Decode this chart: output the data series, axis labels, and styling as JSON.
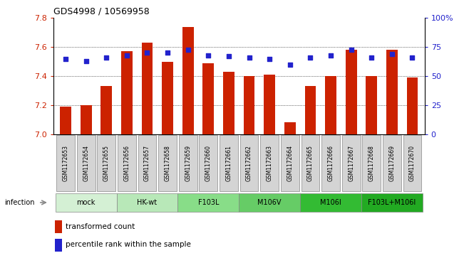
{
  "title": "GDS4998 / 10569958",
  "samples": [
    "GSM1172653",
    "GSM1172654",
    "GSM1172655",
    "GSM1172656",
    "GSM1172657",
    "GSM1172658",
    "GSM1172659",
    "GSM1172660",
    "GSM1172661",
    "GSM1172662",
    "GSM1172663",
    "GSM1172664",
    "GSM1172665",
    "GSM1172666",
    "GSM1172667",
    "GSM1172668",
    "GSM1172669",
    "GSM1172670"
  ],
  "bar_values": [
    7.19,
    7.2,
    7.33,
    7.57,
    7.63,
    7.5,
    7.74,
    7.49,
    7.43,
    7.4,
    7.41,
    7.08,
    7.33,
    7.4,
    7.58,
    7.4,
    7.58,
    7.39
  ],
  "percentile_values": [
    65,
    63,
    66,
    68,
    70,
    70,
    73,
    68,
    67,
    66,
    65,
    60,
    66,
    68,
    73,
    66,
    69,
    66
  ],
  "ylim": [
    7.0,
    7.8
  ],
  "y2lim": [
    0,
    100
  ],
  "yticks": [
    7.0,
    7.2,
    7.4,
    7.6,
    7.8
  ],
  "y2ticks": [
    0,
    25,
    50,
    75,
    100
  ],
  "bar_color": "#cc2200",
  "dot_color": "#2222cc",
  "groups": [
    {
      "label": "mock",
      "start": 0,
      "end": 2,
      "color": "#d4f0d4"
    },
    {
      "label": "HK-wt",
      "start": 3,
      "end": 5,
      "color": "#b8e8b8"
    },
    {
      "label": "F103L",
      "start": 6,
      "end": 8,
      "color": "#88dd88"
    },
    {
      "label": "M106V",
      "start": 9,
      "end": 11,
      "color": "#66cc66"
    },
    {
      "label": "M106I",
      "start": 12,
      "end": 14,
      "color": "#33bb33"
    },
    {
      "label": "F103L+M106I",
      "start": 15,
      "end": 17,
      "color": "#22aa22"
    }
  ],
  "infection_label": "infection",
  "legend_bar_label": "transformed count",
  "legend_dot_label": "percentile rank within the sample",
  "bar_width": 0.55,
  "sample_box_color": "#d4d4d4",
  "sample_box_edge": "#888888"
}
